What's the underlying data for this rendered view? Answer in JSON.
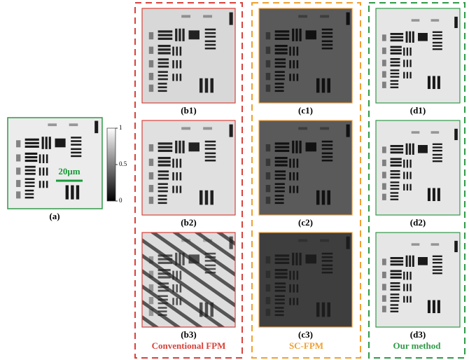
{
  "panel_a": {
    "label": "(a)",
    "scale_bar": "20μm"
  },
  "colorbar": {
    "ticks": [
      1,
      0.5,
      0
    ]
  },
  "groups": [
    {
      "title": "Conventional FPM",
      "labels": [
        "(b1)",
        "(b2)",
        "(b3)"
      ]
    },
    {
      "title": "SC-FPM",
      "labels": [
        "(c1)",
        "(c2)",
        "(c3)"
      ]
    },
    {
      "title": "Our method",
      "labels": [
        "(d1)",
        "(d2)",
        "(d3)"
      ]
    }
  ]
}
